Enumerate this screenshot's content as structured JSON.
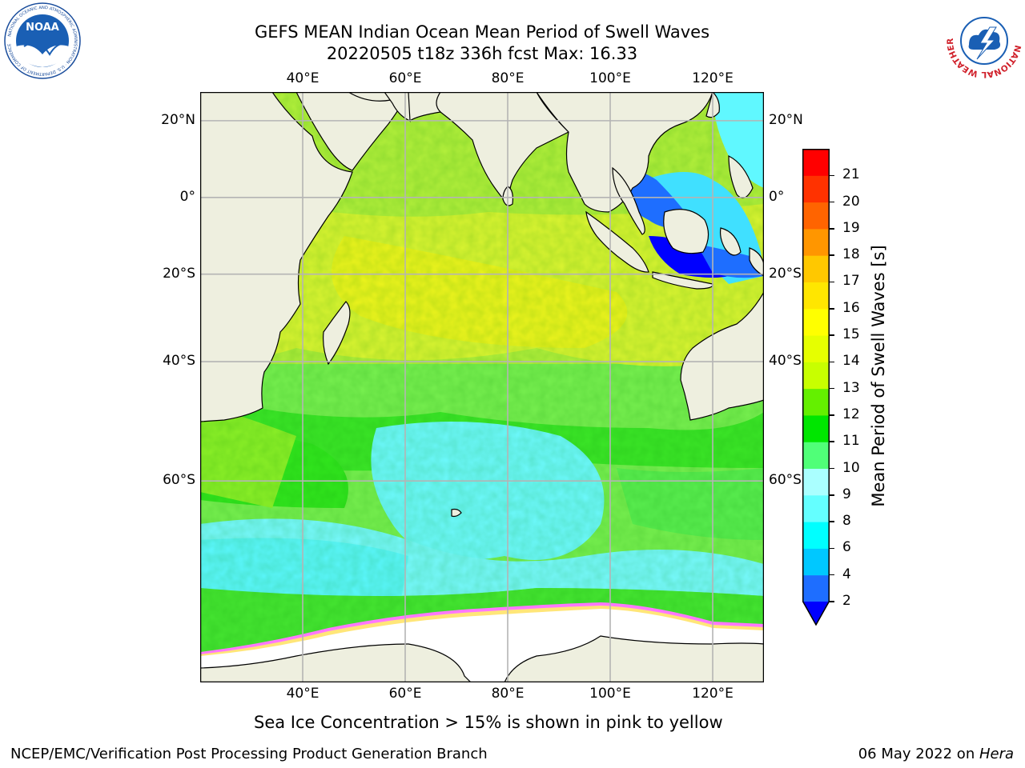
{
  "title": {
    "line1": "GEFS MEAN Indian Ocean Mean Period of Swell Waves",
    "line2": "20220505 t18z 336h fcst   Max: 16.33"
  },
  "logos": {
    "left": {
      "text": "NOAA",
      "ring": "NATIONAL OCEANIC AND ATMOSPHERIC ADMINISTRATION · U.S. DEPARTMENT OF COMMERCE"
    },
    "right": {
      "ring": "NATIONAL WEATHER SERVICE"
    }
  },
  "map": {
    "lon_labels": [
      "40°E",
      "60°E",
      "80°E",
      "100°E",
      "120°E"
    ],
    "lat_labels": [
      "20°N",
      "0°",
      "20°S",
      "40°S",
      "60°S"
    ],
    "lon_range": [
      20,
      130
    ],
    "lat_range": [
      -78,
      27
    ],
    "gridlines": true
  },
  "colorbar": {
    "label": "Mean Period of Swell Waves [s]",
    "ticks": [
      "2",
      "4",
      "6",
      "8",
      "9",
      "10",
      "11",
      "12",
      "13",
      "14",
      "15",
      "16",
      "17",
      "18",
      "19",
      "20",
      "21"
    ],
    "colors": [
      "#1e6eff",
      "#00c8ff",
      "#00ffff",
      "#64ffff",
      "#aaffff",
      "#50ff78",
      "#00e600",
      "#64f000",
      "#c8ff00",
      "#e6ff00",
      "#ffff00",
      "#ffe600",
      "#ffc800",
      "#ff9600",
      "#ff6400",
      "#ff3200",
      "#ff0000"
    ],
    "under_color": "#0000ff"
  },
  "note": "Sea Ice Concentration > 15% is shown in pink to yellow",
  "footer": {
    "left": "NCEP/EMC/Verification Post Processing Product Generation Branch",
    "right_date": "06 May 2022 on ",
    "right_host": "Hera"
  }
}
